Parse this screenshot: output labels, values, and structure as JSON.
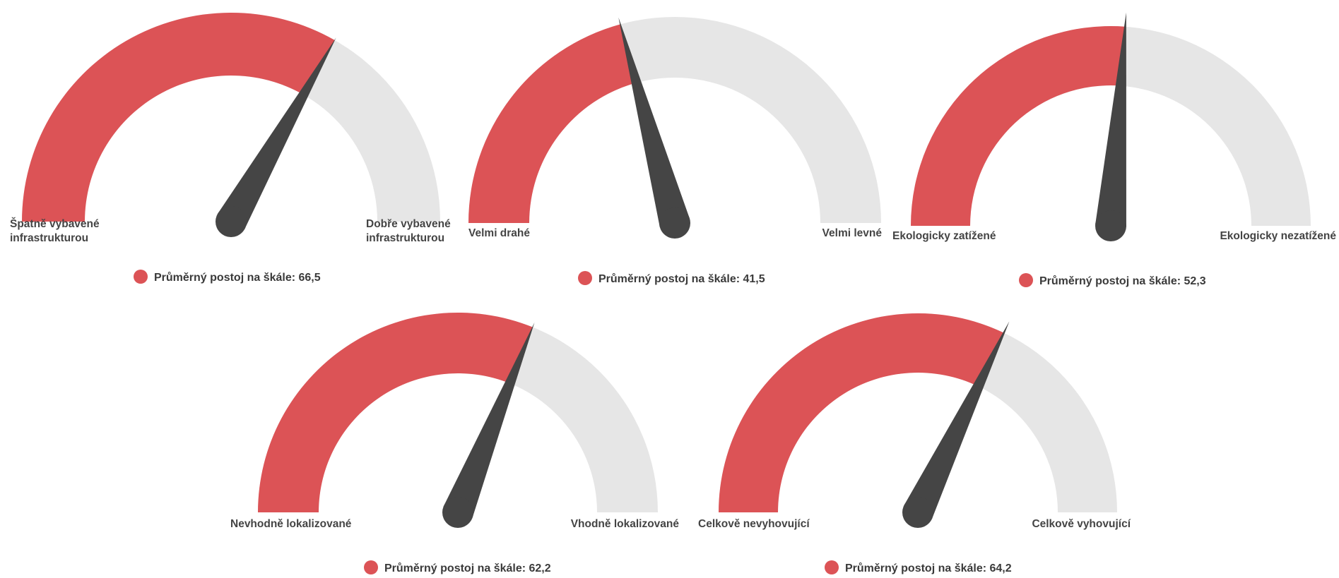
{
  "colors": {
    "filled": "#dc5356",
    "track": "#e6e6e6",
    "needle": "#454545",
    "text": "#444444"
  },
  "chart_data": [
    {
      "type": "gauge",
      "min": 0,
      "max": 100,
      "value": 66.5,
      "left_label": [
        "Špatně vybavené",
        "infrastrukturou"
      ],
      "right_label": [
        "Dobře vybavené",
        "infrastrukturou"
      ],
      "legend": "Průměrný postoj na škále: 66,5"
    },
    {
      "type": "gauge",
      "min": 0,
      "max": 100,
      "value": 41.5,
      "left_label": [
        "Velmi drahé"
      ],
      "right_label": [
        "Velmi levné"
      ],
      "legend": "Průměrný postoj na škále: 41,5"
    },
    {
      "type": "gauge",
      "min": 0,
      "max": 100,
      "value": 52.3,
      "left_label": [
        "Ekologicky zatížené"
      ],
      "right_label": [
        "Ekologicky nezatížené"
      ],
      "legend": "Průměrný postoj na škále: 52,3"
    },
    {
      "type": "gauge",
      "min": 0,
      "max": 100,
      "value": 62.2,
      "left_label": [
        "Nevhodně lokalizované"
      ],
      "right_label": [
        "Vhodně lokalizované"
      ],
      "legend": "Průměrný postoj na škále: 62,2"
    },
    {
      "type": "gauge",
      "min": 0,
      "max": 100,
      "value": 64.2,
      "left_label": [
        "Celkově nevyhovující"
      ],
      "right_label": [
        "Celkově vyhovující"
      ],
      "legend": "Průměrný postoj na škále: 64,2"
    }
  ]
}
